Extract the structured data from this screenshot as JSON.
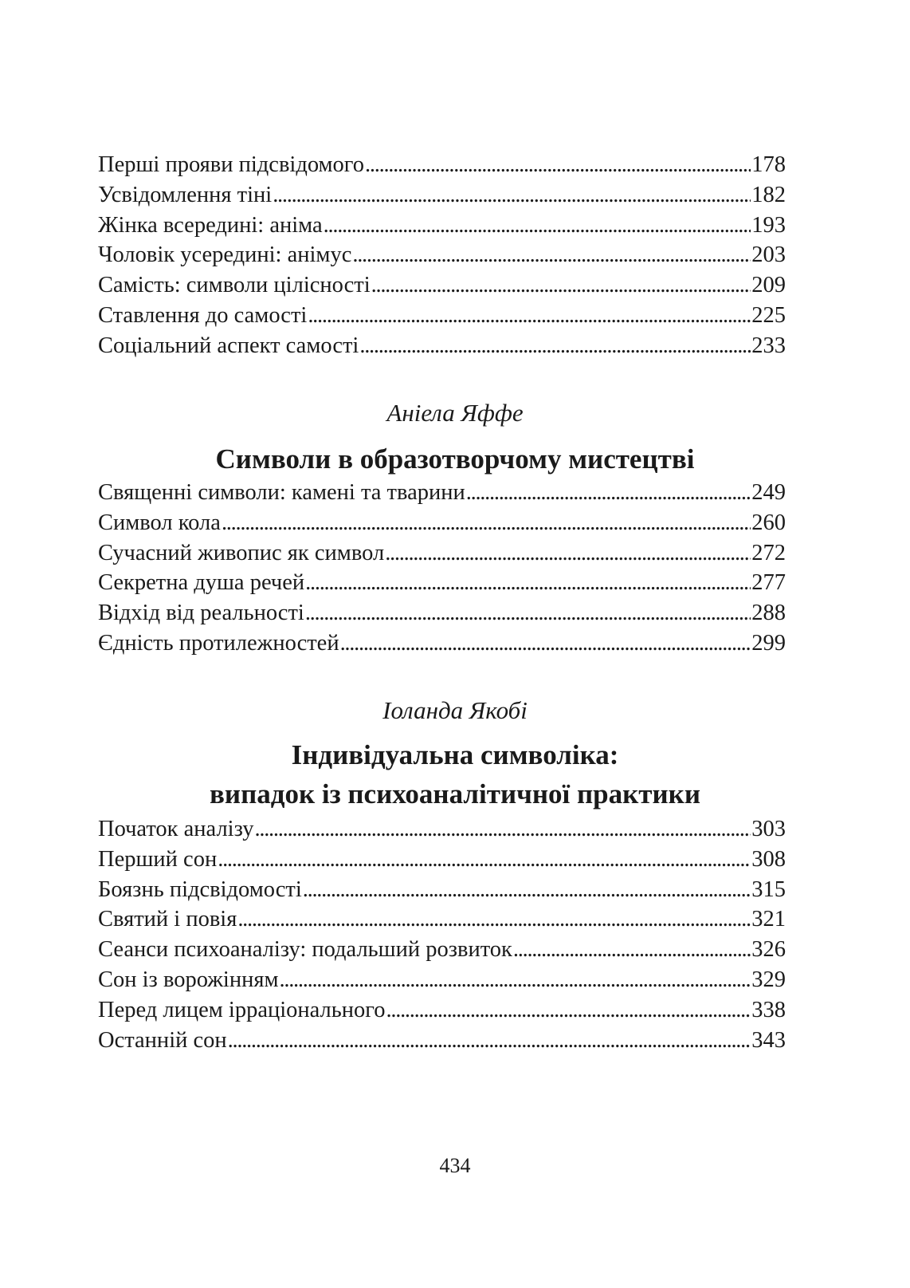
{
  "sections": [
    {
      "entries": [
        {
          "title": "Перші прояви підсвідомого",
          "page": "178"
        },
        {
          "title": "Усвідомлення тіні",
          "page": "182"
        },
        {
          "title": "Жінка всередині: аніма",
          "page": "193"
        },
        {
          "title": "Чоловік усередині: анімус",
          "page": "203"
        },
        {
          "title": "Самість: символи цілісності",
          "page": "209"
        },
        {
          "title": "Ставлення до самості",
          "page": "225"
        },
        {
          "title": "Соціальний аспект самості",
          "page": "233"
        }
      ]
    },
    {
      "author": "Аніела Яффе",
      "title": "Символи в образотворчому мистецтві",
      "entries": [
        {
          "title": "Священні символи: камені та тварини",
          "page": "249"
        },
        {
          "title": "Символ кола",
          "page": "260"
        },
        {
          "title": "Сучасний живопис як символ",
          "page": "272"
        },
        {
          "title": "Секретна душа речей",
          "page": "277"
        },
        {
          "title": "Відхід від реальності",
          "page": "288"
        },
        {
          "title": "Єдність протилежностей",
          "page": "299"
        }
      ]
    },
    {
      "author": "Іоланда Якобі",
      "title_line1": "Індивідуальна символіка:",
      "title_line2": "випадок із психоаналітичної практики",
      "entries": [
        {
          "title": "Початок аналізу",
          "page": "303"
        },
        {
          "title": "Перший  сон",
          "page": "308"
        },
        {
          "title": "Боязнь підсвідомості",
          "page": "315"
        },
        {
          "title": "Святий і повія",
          "page": "321"
        },
        {
          "title": "Сеанси психоаналізу: подальший розвиток",
          "page": "326"
        },
        {
          "title": "Сон із ворожінням",
          "page": "329"
        },
        {
          "title": "Перед лицем ірраціонального",
          "page": "338"
        },
        {
          "title": "Останній сон",
          "page": "343"
        }
      ]
    }
  ],
  "page_number": "434"
}
